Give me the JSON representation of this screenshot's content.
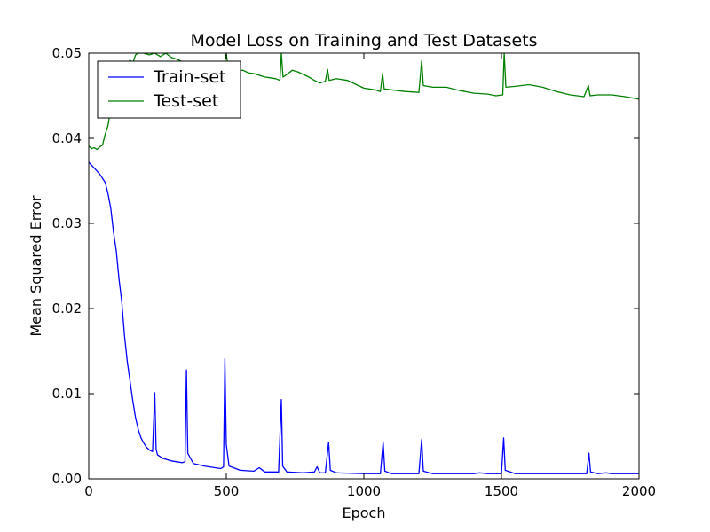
{
  "chart_data": {
    "type": "line",
    "title": "Model Loss on Training and Test Datasets",
    "xlabel": "Epoch",
    "ylabel": "Mean Squared Error",
    "xlim": [
      0,
      2000
    ],
    "ylim": [
      0.0,
      0.05
    ],
    "x_ticks": [
      0,
      500,
      1000,
      1500,
      2000
    ],
    "x_tick_labels": [
      "0",
      "500",
      "1000",
      "1500",
      "2000"
    ],
    "y_ticks": [
      0.0,
      0.01,
      0.02,
      0.03,
      0.04,
      0.05
    ],
    "y_tick_labels": [
      "0.00",
      "0.01",
      "0.02",
      "0.03",
      "0.04",
      "0.05"
    ],
    "grid": false,
    "legend": {
      "position": "top-left",
      "entries": [
        "Train-set",
        "Test-set"
      ]
    },
    "series": [
      {
        "name": "Train-set",
        "color": "#0000ff",
        "points": [
          [
            0,
            0.0372
          ],
          [
            20,
            0.0365
          ],
          [
            40,
            0.0358
          ],
          [
            60,
            0.0348
          ],
          [
            70,
            0.0335
          ],
          [
            80,
            0.0318
          ],
          [
            90,
            0.029
          ],
          [
            100,
            0.0268
          ],
          [
            110,
            0.0235
          ],
          [
            120,
            0.0208
          ],
          [
            130,
            0.0168
          ],
          [
            140,
            0.0138
          ],
          [
            150,
            0.0115
          ],
          [
            160,
            0.0092
          ],
          [
            170,
            0.0072
          ],
          [
            180,
            0.0058
          ],
          [
            190,
            0.0048
          ],
          [
            200,
            0.0042
          ],
          [
            210,
            0.0037
          ],
          [
            220,
            0.0034
          ],
          [
            232,
            0.0032
          ],
          [
            240,
            0.0101
          ],
          [
            245,
            0.0035
          ],
          [
            250,
            0.0028
          ],
          [
            270,
            0.0024
          ],
          [
            300,
            0.0021
          ],
          [
            340,
            0.0019
          ],
          [
            350,
            0.002
          ],
          [
            355,
            0.0128
          ],
          [
            360,
            0.003
          ],
          [
            380,
            0.0018
          ],
          [
            420,
            0.0015
          ],
          [
            440,
            0.0014
          ],
          [
            480,
            0.0012
          ],
          [
            490,
            0.0014
          ],
          [
            495,
            0.0141
          ],
          [
            500,
            0.004
          ],
          [
            510,
            0.0015
          ],
          [
            550,
            0.001
          ],
          [
            600,
            0.0009
          ],
          [
            620,
            0.0013
          ],
          [
            640,
            0.0008
          ],
          [
            690,
            0.0008
          ],
          [
            700,
            0.0093
          ],
          [
            705,
            0.0015
          ],
          [
            720,
            0.0008
          ],
          [
            780,
            0.0007
          ],
          [
            820,
            0.0008
          ],
          [
            830,
            0.0014
          ],
          [
            840,
            0.0007
          ],
          [
            860,
            0.0007
          ],
          [
            872,
            0.0043
          ],
          [
            878,
            0.001
          ],
          [
            900,
            0.0007
          ],
          [
            1000,
            0.0006
          ],
          [
            1060,
            0.0006
          ],
          [
            1070,
            0.0043
          ],
          [
            1076,
            0.0009
          ],
          [
            1100,
            0.0006
          ],
          [
            1200,
            0.0006
          ],
          [
            1210,
            0.0046
          ],
          [
            1216,
            0.0009
          ],
          [
            1250,
            0.0006
          ],
          [
            1400,
            0.0006
          ],
          [
            1420,
            0.0007
          ],
          [
            1450,
            0.0006
          ],
          [
            1500,
            0.0006
          ],
          [
            1508,
            0.0048
          ],
          [
            1514,
            0.001
          ],
          [
            1550,
            0.0006
          ],
          [
            1700,
            0.0006
          ],
          [
            1810,
            0.0006
          ],
          [
            1818,
            0.003
          ],
          [
            1824,
            0.0008
          ],
          [
            1850,
            0.0006
          ],
          [
            1880,
            0.0007
          ],
          [
            1900,
            0.0006
          ],
          [
            2000,
            0.0006
          ]
        ]
      },
      {
        "name": "Test-set",
        "color": "#008000",
        "points": [
          [
            0,
            0.0391
          ],
          [
            10,
            0.0388
          ],
          [
            20,
            0.0389
          ],
          [
            30,
            0.0387
          ],
          [
            40,
            0.039
          ],
          [
            50,
            0.0392
          ],
          [
            60,
            0.0405
          ],
          [
            70,
            0.0415
          ],
          [
            80,
            0.0435
          ],
          [
            90,
            0.0448
          ],
          [
            100,
            0.0462
          ],
          [
            110,
            0.047
          ],
          [
            120,
            0.0478
          ],
          [
            130,
            0.0474
          ],
          [
            140,
            0.0485
          ],
          [
            150,
            0.0492
          ],
          [
            160,
            0.0488
          ],
          [
            170,
            0.0498
          ],
          [
            180,
            0.05
          ],
          [
            200,
            0.05
          ],
          [
            220,
            0.0498
          ],
          [
            240,
            0.05
          ],
          [
            260,
            0.0496
          ],
          [
            280,
            0.05
          ],
          [
            300,
            0.0495
          ],
          [
            320,
            0.0493
          ],
          [
            340,
            0.049
          ],
          [
            360,
            0.0488
          ],
          [
            380,
            0.0486
          ],
          [
            400,
            0.0489
          ],
          [
            420,
            0.0484
          ],
          [
            440,
            0.0486
          ],
          [
            460,
            0.0482
          ],
          [
            480,
            0.0485
          ],
          [
            495,
            0.049
          ],
          [
            500,
            0.05
          ],
          [
            505,
            0.0486
          ],
          [
            520,
            0.0481
          ],
          [
            540,
            0.0479
          ],
          [
            560,
            0.048
          ],
          [
            580,
            0.0477
          ],
          [
            600,
            0.0476
          ],
          [
            620,
            0.0474
          ],
          [
            640,
            0.0472
          ],
          [
            660,
            0.0471
          ],
          [
            680,
            0.047
          ],
          [
            695,
            0.0468
          ],
          [
            700,
            0.05
          ],
          [
            706,
            0.0472
          ],
          [
            720,
            0.0475
          ],
          [
            740,
            0.048
          ],
          [
            760,
            0.0478
          ],
          [
            780,
            0.0475
          ],
          [
            800,
            0.0472
          ],
          [
            820,
            0.0468
          ],
          [
            840,
            0.0465
          ],
          [
            860,
            0.0467
          ],
          [
            868,
            0.0481
          ],
          [
            874,
            0.0468
          ],
          [
            900,
            0.047
          ],
          [
            940,
            0.0468
          ],
          [
            980,
            0.0462
          ],
          [
            1000,
            0.0459
          ],
          [
            1040,
            0.0457
          ],
          [
            1060,
            0.0455
          ],
          [
            1068,
            0.0476
          ],
          [
            1074,
            0.0458
          ],
          [
            1100,
            0.0457
          ],
          [
            1150,
            0.0455
          ],
          [
            1200,
            0.0454
          ],
          [
            1210,
            0.0491
          ],
          [
            1216,
            0.0462
          ],
          [
            1250,
            0.046
          ],
          [
            1300,
            0.046
          ],
          [
            1350,
            0.0456
          ],
          [
            1400,
            0.0453
          ],
          [
            1450,
            0.0452
          ],
          [
            1480,
            0.045
          ],
          [
            1505,
            0.0451
          ],
          [
            1510,
            0.05
          ],
          [
            1516,
            0.046
          ],
          [
            1550,
            0.0461
          ],
          [
            1600,
            0.0463
          ],
          [
            1650,
            0.046
          ],
          [
            1700,
            0.0455
          ],
          [
            1750,
            0.0451
          ],
          [
            1800,
            0.0449
          ],
          [
            1816,
            0.0462
          ],
          [
            1822,
            0.045
          ],
          [
            1850,
            0.0451
          ],
          [
            1900,
            0.0451
          ],
          [
            1950,
            0.0449
          ],
          [
            2000,
            0.0446
          ]
        ]
      }
    ]
  }
}
